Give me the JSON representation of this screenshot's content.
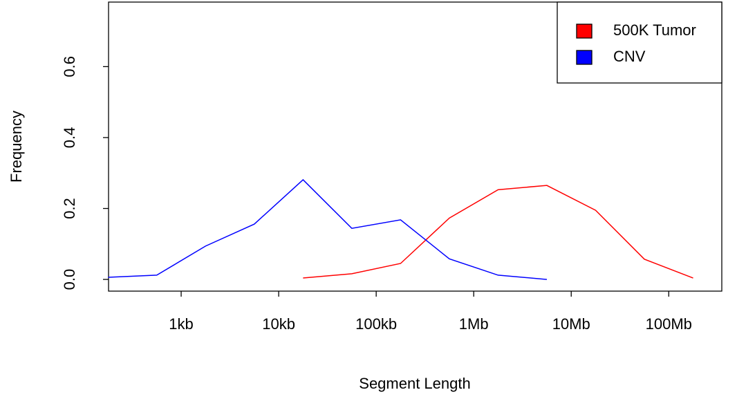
{
  "chart_data": {
    "type": "line",
    "xlabel": "Segment Length",
    "ylabel": "Frequency",
    "xscale": "log",
    "xlim": [
      180,
      350000000
    ],
    "ylim": [
      -0.033,
      0.782
    ],
    "xticks": [
      {
        "value": 1000,
        "label": "1kb"
      },
      {
        "value": 10000,
        "label": "10kb"
      },
      {
        "value": 100000,
        "label": "100kb"
      },
      {
        "value": 1000000,
        "label": "1Mb"
      },
      {
        "value": 10000000,
        "label": "10Mb"
      },
      {
        "value": 100000000,
        "label": "100Mb"
      }
    ],
    "yticks": [
      {
        "value": 0,
        "label": "0.0"
      },
      0.2,
      0.4,
      0.6
    ],
    "legend": "topright",
    "series": [
      {
        "name": "500K Tumor",
        "color": "#ff0000",
        "x": [
          17783,
          56234,
          177828,
          562341,
          1778279,
          5623413,
          17782794,
          56234133,
          177827941
        ],
        "values": [
          0.004,
          0.016,
          0.045,
          0.173,
          0.253,
          0.265,
          0.195,
          0.057,
          0.004
        ]
      },
      {
        "name": "CNV",
        "color": "#0000ff",
        "x": [
          178,
          562,
          1778,
          5623,
          17783,
          56234,
          177828,
          562341,
          1778279,
          5623413
        ],
        "values": [
          0.006,
          0.012,
          0.094,
          0.156,
          0.281,
          0.144,
          0.168,
          0.058,
          0.012,
          0.0
        ]
      }
    ]
  }
}
